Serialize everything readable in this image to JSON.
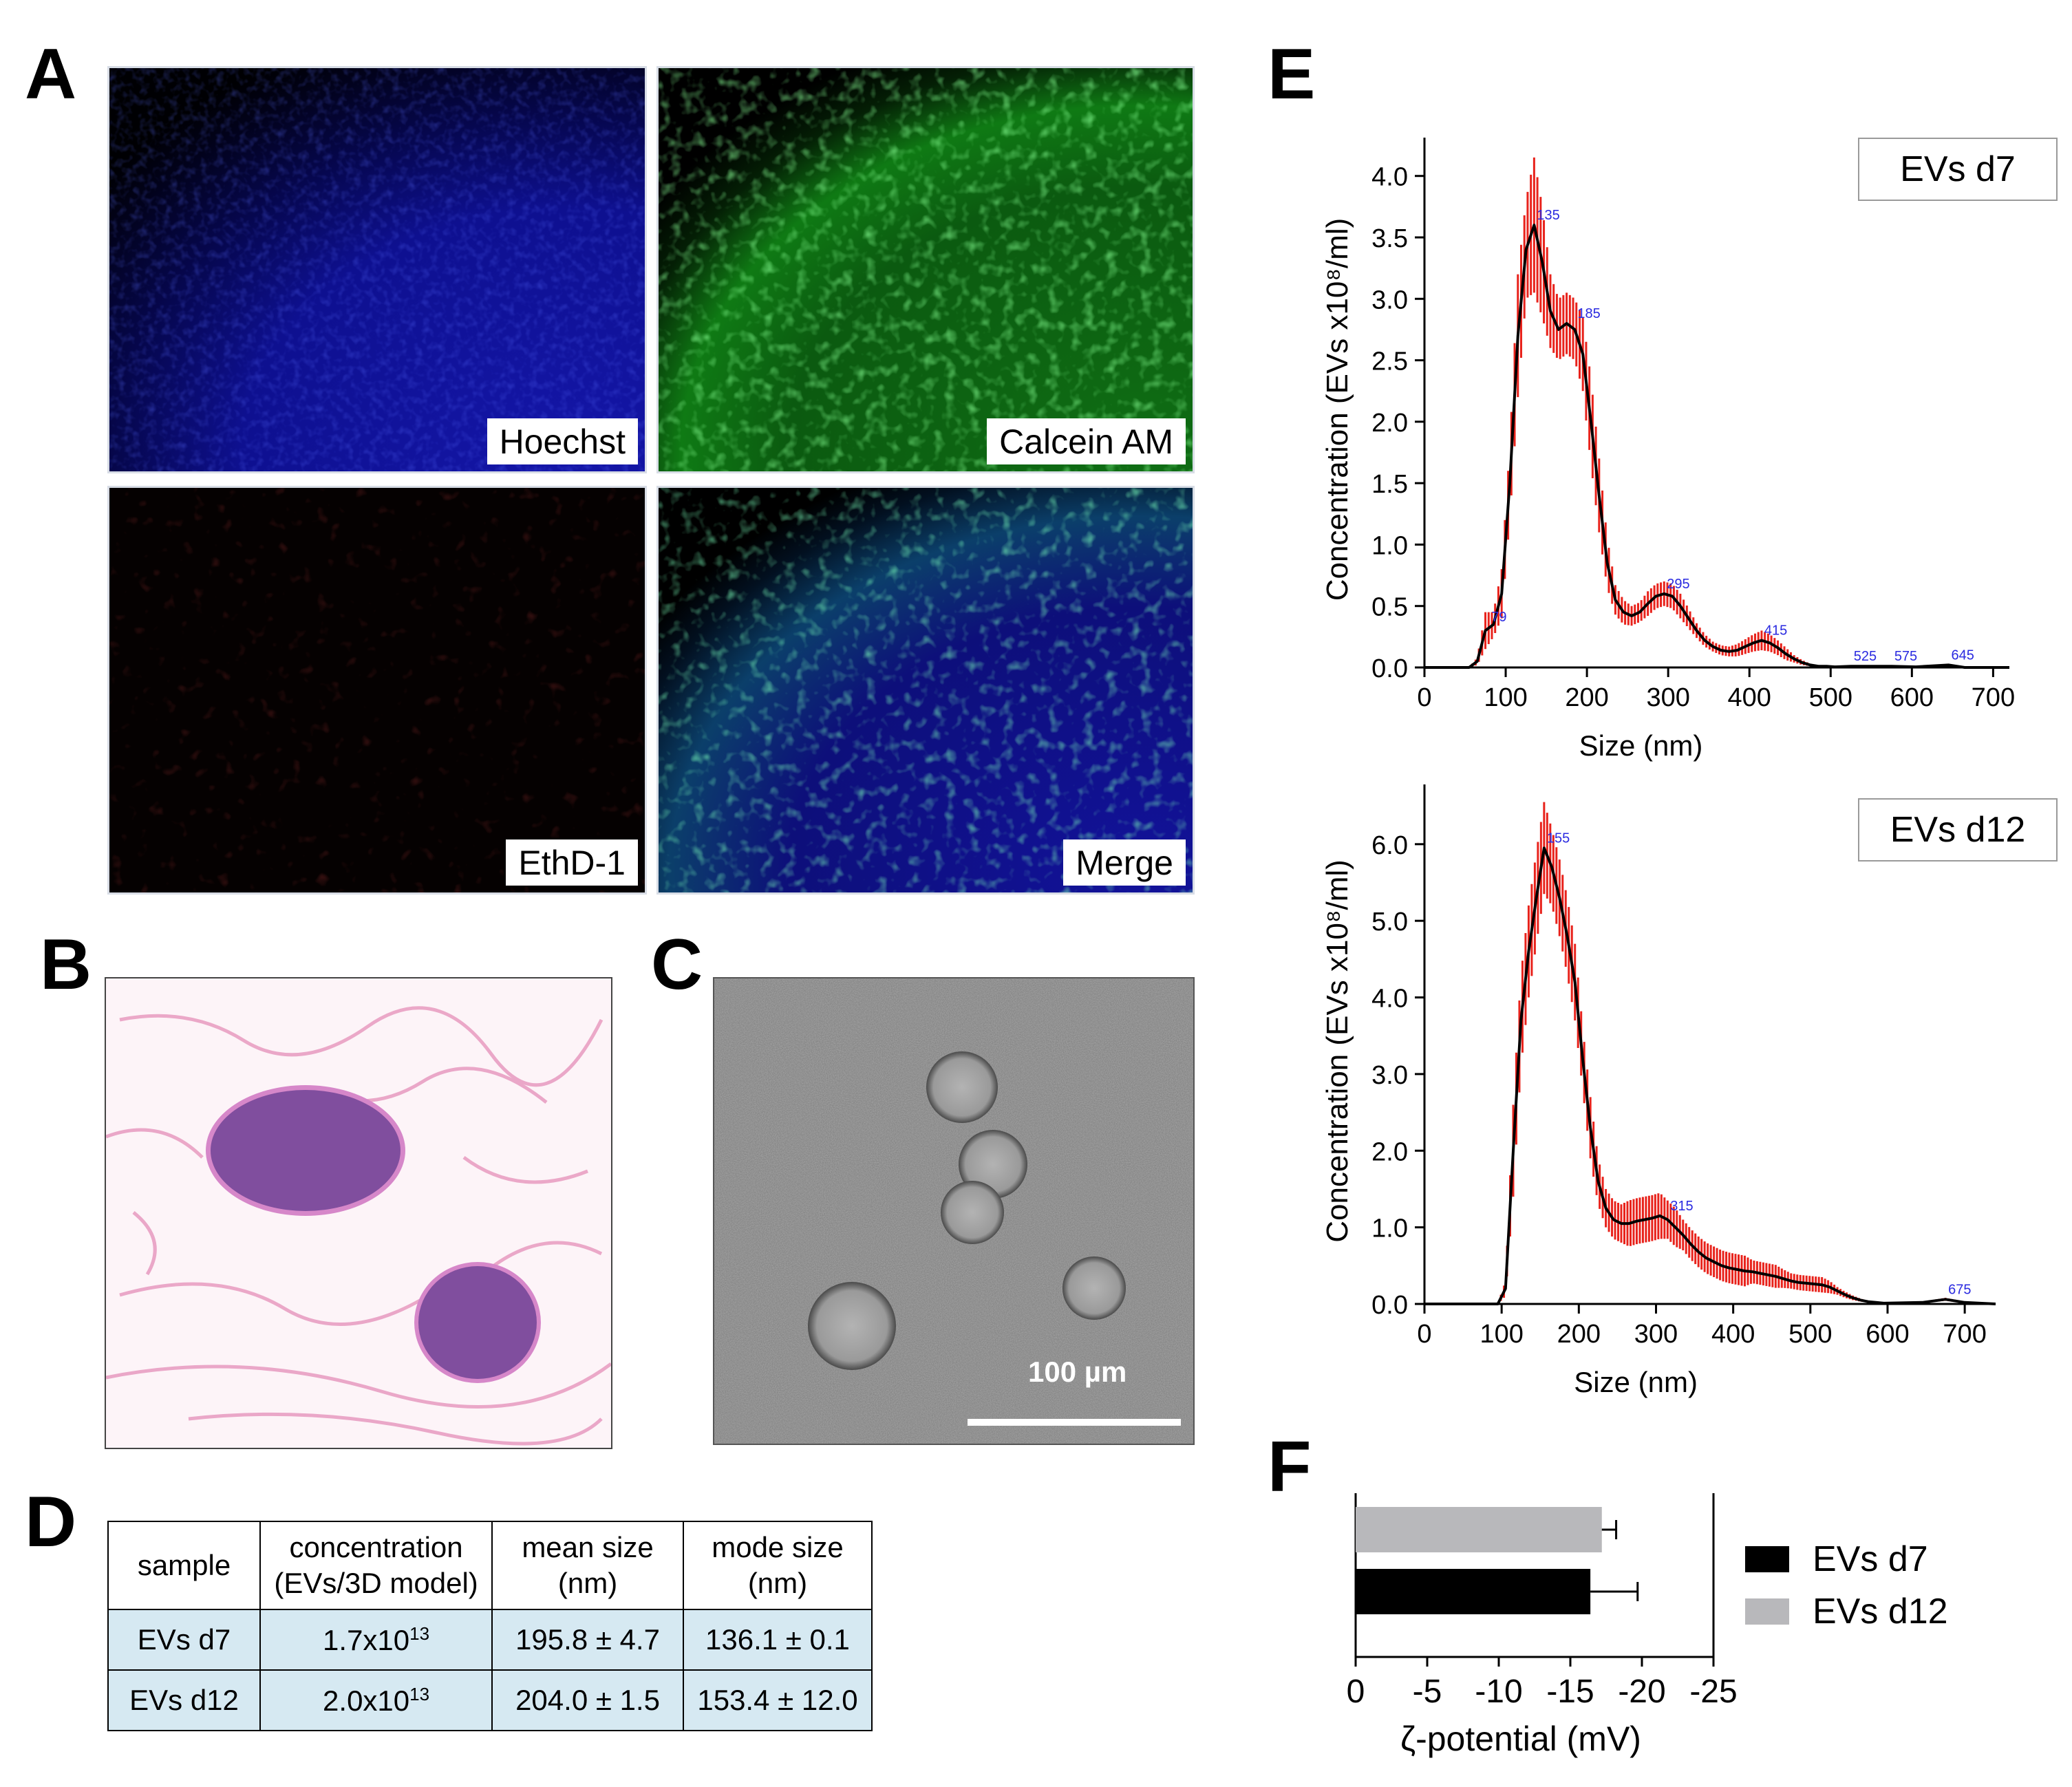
{
  "panels": {
    "A": "A",
    "B": "B",
    "C": "C",
    "D": "D",
    "E": "E",
    "F": "F"
  },
  "panel_a": {
    "labels": [
      "Hoechst",
      "Calcein AM",
      "EthD-1",
      "Merge"
    ]
  },
  "panel_c": {
    "scale_bar": "100 µm"
  },
  "panel_d": {
    "headers": [
      [
        "sample"
      ],
      [
        "concentration",
        "(EVs/3D model)"
      ],
      [
        "mean size",
        "(nm)"
      ],
      [
        "mode size",
        "(nm)"
      ]
    ],
    "rows": [
      {
        "sample": "EVs d7",
        "conc_base": "1.7x10",
        "conc_exp": "13",
        "mean": "195.8 ± 4.7",
        "mode": "136.1 ± 0.1"
      },
      {
        "sample": "EVs d12",
        "conc_base": "2.0x10",
        "conc_exp": "13",
        "mean": "204.0 ±  1.5",
        "mode": "153.4 ±  12.0"
      }
    ]
  },
  "chart_data": [
    {
      "panel": "E",
      "type": "line",
      "legend": "EVs d7",
      "xlabel": "Size (nm)",
      "ylabel": "Concentration (EVs x10⁸/ml)",
      "xlim": [
        0,
        720
      ],
      "ylim": [
        0,
        4.2
      ],
      "xticks": [
        0,
        100,
        200,
        300,
        400,
        500,
        600,
        700
      ],
      "yticks": [
        "0.0",
        "0.5",
        "1.0",
        "1.5",
        "2.0",
        "2.5",
        "3.0",
        "3.5",
        "4.0"
      ],
      "line_color": "#000000",
      "errorbar_color": "#e8221b",
      "x": [
        0,
        55,
        65,
        75,
        85,
        95,
        105,
        115,
        125,
        135,
        145,
        155,
        165,
        175,
        185,
        195,
        205,
        215,
        225,
        235,
        245,
        255,
        265,
        275,
        285,
        295,
        305,
        315,
        325,
        335,
        345,
        355,
        365,
        375,
        385,
        395,
        405,
        415,
        425,
        435,
        445,
        455,
        465,
        475,
        485,
        495,
        505,
        525,
        545,
        575,
        605,
        645,
        665,
        720
      ],
      "y": [
        0,
        0,
        0.05,
        0.3,
        0.35,
        0.6,
        1.5,
        2.7,
        3.4,
        3.6,
        3.3,
        2.9,
        2.75,
        2.8,
        2.75,
        2.55,
        2.0,
        1.4,
        0.85,
        0.55,
        0.45,
        0.42,
        0.45,
        0.52,
        0.58,
        0.6,
        0.58,
        0.5,
        0.4,
        0.3,
        0.22,
        0.17,
        0.14,
        0.13,
        0.14,
        0.17,
        0.2,
        0.22,
        0.2,
        0.16,
        0.11,
        0.07,
        0.04,
        0.02,
        0.01,
        0.01,
        0.005,
        0.01,
        0.01,
        0.01,
        0.005,
        0.02,
        0.0,
        0
      ],
      "err": [
        0,
        0,
        0.03,
        0.15,
        0.1,
        0.2,
        0.3,
        0.5,
        0.4,
        0.55,
        0.45,
        0.3,
        0.25,
        0.25,
        0.25,
        0.3,
        0.35,
        0.3,
        0.2,
        0.12,
        0.1,
        0.08,
        0.08,
        0.1,
        0.1,
        0.1,
        0.1,
        0.1,
        0.08,
        0.06,
        0.05,
        0.04,
        0.04,
        0.04,
        0.05,
        0.06,
        0.07,
        0.08,
        0.07,
        0.06,
        0.05,
        0.03,
        0.02,
        0.01,
        0.005,
        0.005,
        0.005,
        0.005,
        0.005,
        0.005,
        0.005,
        0.01,
        0,
        0
      ],
      "peak_labels": [
        {
          "x": 79,
          "y": 0.33,
          "text": "79"
        },
        {
          "x": 135,
          "y": 3.6,
          "text": "135"
        },
        {
          "x": 185,
          "y": 2.8,
          "text": "185"
        },
        {
          "x": 295,
          "y": 0.6,
          "text": "295"
        },
        {
          "x": 415,
          "y": 0.22,
          "text": "415"
        },
        {
          "x": 525,
          "y": 0.01,
          "text": "525"
        },
        {
          "x": 575,
          "y": 0.01,
          "text": "575"
        },
        {
          "x": 645,
          "y": 0.02,
          "text": "645"
        }
      ]
    },
    {
      "panel": "E",
      "type": "line",
      "legend": "EVs d12",
      "xlabel": "Size (nm)",
      "ylabel": "Concentration (EVs x10⁸/ml)",
      "xlim": [
        0,
        740
      ],
      "ylim": [
        0,
        6.6
      ],
      "xticks": [
        0,
        100,
        200,
        300,
        400,
        500,
        600,
        700
      ],
      "yticks": [
        "0.0",
        "1.0",
        "2.0",
        "3.0",
        "4.0",
        "5.0",
        "6.0"
      ],
      "line_color": "#000000",
      "errorbar_color": "#e8221b",
      "x": [
        0,
        95,
        105,
        115,
        125,
        135,
        145,
        155,
        165,
        175,
        185,
        195,
        205,
        215,
        225,
        235,
        245,
        255,
        265,
        275,
        285,
        295,
        305,
        315,
        325,
        335,
        345,
        355,
        365,
        375,
        385,
        395,
        405,
        415,
        425,
        435,
        445,
        455,
        465,
        475,
        485,
        495,
        505,
        515,
        525,
        535,
        545,
        555,
        565,
        575,
        585,
        595,
        645,
        675,
        700,
        740
      ],
      "y": [
        0,
        0,
        0.2,
        2.0,
        3.7,
        4.6,
        5.3,
        5.95,
        5.7,
        5.3,
        4.8,
        4.2,
        3.2,
        2.3,
        1.6,
        1.25,
        1.1,
        1.05,
        1.05,
        1.08,
        1.1,
        1.12,
        1.15,
        1.1,
        1.0,
        0.9,
        0.78,
        0.68,
        0.6,
        0.55,
        0.5,
        0.47,
        0.45,
        0.43,
        0.42,
        0.4,
        0.38,
        0.36,
        0.33,
        0.3,
        0.28,
        0.27,
        0.26,
        0.25,
        0.22,
        0.17,
        0.12,
        0.08,
        0.05,
        0.03,
        0.02,
        0.01,
        0.02,
        0.06,
        0.02,
        0
      ],
      "err": [
        0,
        0,
        0.1,
        0.6,
        0.6,
        0.6,
        0.6,
        0.6,
        0.5,
        0.5,
        0.5,
        0.5,
        0.4,
        0.4,
        0.3,
        0.25,
        0.25,
        0.25,
        0.3,
        0.3,
        0.3,
        0.3,
        0.3,
        0.25,
        0.25,
        0.2,
        0.2,
        0.2,
        0.2,
        0.2,
        0.2,
        0.2,
        0.2,
        0.2,
        0.15,
        0.15,
        0.15,
        0.15,
        0.12,
        0.1,
        0.1,
        0.1,
        0.1,
        0.1,
        0.08,
        0.05,
        0.04,
        0.03,
        0.02,
        0.01,
        0.01,
        0.005,
        0.01,
        0.02,
        0.01,
        0
      ],
      "peak_labels": [
        {
          "x": 155,
          "y": 5.95,
          "text": "155"
        },
        {
          "x": 315,
          "y": 1.15,
          "text": "315"
        },
        {
          "x": 675,
          "y": 0.06,
          "text": "675"
        }
      ]
    },
    {
      "panel": "F",
      "type": "bar",
      "orientation": "horizontal",
      "xlabel": "ζ-potential (mV)",
      "xlim": [
        0,
        -25
      ],
      "xticks": [
        "0",
        "-5",
        "-10",
        "-15",
        "-20",
        "-25"
      ],
      "series": [
        {
          "name": "EVs d12",
          "value": -17.2,
          "err": 1.0,
          "color": "#b8b8bb"
        },
        {
          "name": "EVs d7",
          "value": -16.4,
          "err": 3.3,
          "color": "#000000"
        }
      ],
      "legend_order": [
        "EVs d7",
        "EVs d12"
      ],
      "legend_position": "right"
    }
  ]
}
